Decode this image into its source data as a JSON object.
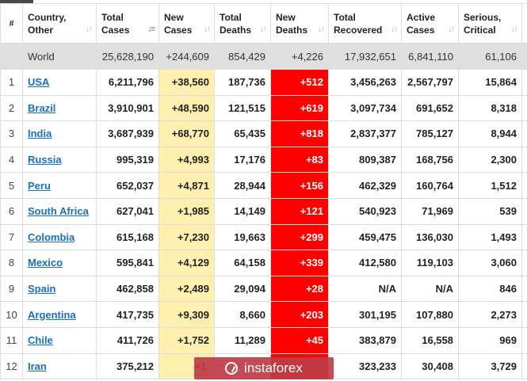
{
  "header": {
    "columns": [
      {
        "label_line1": "#",
        "label_line2": ""
      },
      {
        "label_line1": "Country,",
        "label_line2": "Other"
      },
      {
        "label_line1": "Total",
        "label_line2": "Cases"
      },
      {
        "label_line1": "New",
        "label_line2": "Cases"
      },
      {
        "label_line1": "Total",
        "label_line2": "Deaths"
      },
      {
        "label_line1": "New",
        "label_line2": "Deaths"
      },
      {
        "label_line1": "Total",
        "label_line2": "Recovered"
      },
      {
        "label_line1": "Active",
        "label_line2": "Cases"
      },
      {
        "label_line1": "Serious,",
        "label_line2": "Critical"
      }
    ]
  },
  "world": {
    "country": "World",
    "total_cases": "25,628,190",
    "new_cases": "+244,609",
    "total_deaths": "854,429",
    "new_deaths": "+4,226",
    "total_recovered": "17,932,651",
    "active_cases": "6,841,110",
    "serious": "61,106"
  },
  "rows": [
    {
      "idx": "1",
      "country": "USA",
      "total_cases": "6,211,796",
      "new_cases": "+38,560",
      "total_deaths": "187,736",
      "new_deaths": "+512",
      "total_recovered": "3,456,263",
      "active_cases": "2,567,797",
      "serious": "15,864"
    },
    {
      "idx": "2",
      "country": "Brazil",
      "total_cases": "3,910,901",
      "new_cases": "+48,590",
      "total_deaths": "121,515",
      "new_deaths": "+619",
      "total_recovered": "3,097,734",
      "active_cases": "691,652",
      "serious": "8,318"
    },
    {
      "idx": "3",
      "country": "India",
      "total_cases": "3,687,939",
      "new_cases": "+68,770",
      "total_deaths": "65,435",
      "new_deaths": "+818",
      "total_recovered": "2,837,377",
      "active_cases": "785,127",
      "serious": "8,944"
    },
    {
      "idx": "4",
      "country": "Russia",
      "total_cases": "995,319",
      "new_cases": "+4,993",
      "total_deaths": "17,176",
      "new_deaths": "+83",
      "total_recovered": "809,387",
      "active_cases": "168,756",
      "serious": "2,300"
    },
    {
      "idx": "5",
      "country": "Peru",
      "total_cases": "652,037",
      "new_cases": "+4,871",
      "total_deaths": "28,944",
      "new_deaths": "+156",
      "total_recovered": "462,329",
      "active_cases": "160,764",
      "serious": "1,512"
    },
    {
      "idx": "6",
      "country": "South Africa",
      "total_cases": "627,041",
      "new_cases": "+1,985",
      "total_deaths": "14,149",
      "new_deaths": "+121",
      "total_recovered": "540,923",
      "active_cases": "71,969",
      "serious": "539"
    },
    {
      "idx": "7",
      "country": "Colombia",
      "total_cases": "615,168",
      "new_cases": "+7,230",
      "total_deaths": "19,663",
      "new_deaths": "+299",
      "total_recovered": "459,475",
      "active_cases": "136,030",
      "serious": "1,493"
    },
    {
      "idx": "8",
      "country": "Mexico",
      "total_cases": "595,841",
      "new_cases": "+4,129",
      "total_deaths": "64,158",
      "new_deaths": "+339",
      "total_recovered": "412,580",
      "active_cases": "119,103",
      "serious": "3,060"
    },
    {
      "idx": "9",
      "country": "Spain",
      "total_cases": "462,858",
      "new_cases": "+2,489",
      "total_deaths": "29,094",
      "new_deaths": "+28",
      "total_recovered": "N/A",
      "active_cases": "N/A",
      "serious": "846"
    },
    {
      "idx": "10",
      "country": "Argentina",
      "total_cases": "417,735",
      "new_cases": "+9,309",
      "total_deaths": "8,660",
      "new_deaths": "+203",
      "total_recovered": "301,195",
      "active_cases": "107,880",
      "serious": "2,273"
    },
    {
      "idx": "11",
      "country": "Chile",
      "total_cases": "411,726",
      "new_cases": "+1,752",
      "total_deaths": "11,289",
      "new_deaths": "+45",
      "total_recovered": "383,879",
      "active_cases": "16,558",
      "serious": "969"
    },
    {
      "idx": "12",
      "country": "Iran",
      "total_cases": "375,212",
      "new_cases": "+1,",
      "total_deaths": "",
      "new_deaths": "",
      "total_recovered": "323,233",
      "active_cases": "30,408",
      "serious": "3,729"
    }
  ],
  "watermark": {
    "text": "instaforex",
    "icon": "instaforex-logo-icon"
  }
}
